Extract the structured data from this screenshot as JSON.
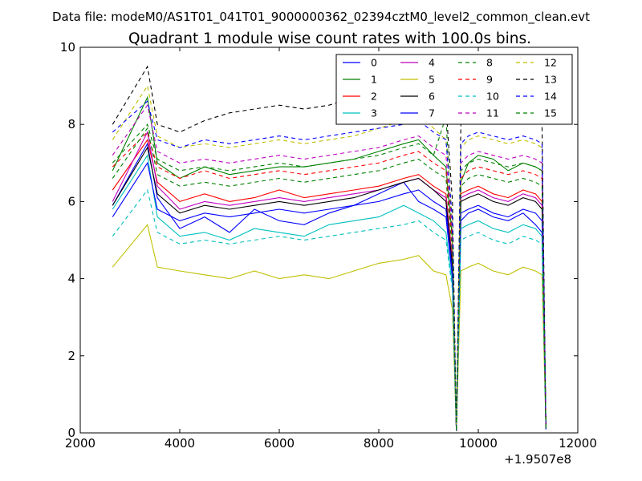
{
  "header": {
    "file_label": "Data file: modeM0/AS1T01_041T01_9000000362_02394cztM0_level2_common_clean.evt"
  },
  "chart_data": {
    "type": "line",
    "title": "Quadrant 1 module wise count rates with 100.0s bins.",
    "xlabel": "",
    "ylabel": "",
    "x_offset_label": "+1.9507e8",
    "xlim": [
      2000,
      12000
    ],
    "ylim": [
      0,
      10
    ],
    "x_ticks": [
      2000,
      4000,
      6000,
      8000,
      10000,
      12000
    ],
    "y_ticks": [
      0,
      2,
      4,
      6,
      8,
      10
    ],
    "x_tick_labels": [
      "2000",
      "4000",
      "6000",
      "8000",
      "10000",
      "12000"
    ],
    "y_tick_labels": [
      "0",
      "2",
      "4",
      "6",
      "8",
      "10"
    ],
    "grid": false,
    "legend_position": "top-right",
    "x": [
      2650,
      3350,
      3550,
      4000,
      4500,
      5000,
      5500,
      6000,
      6500,
      7000,
      7500,
      8000,
      8500,
      8800,
      9100,
      9350,
      9480,
      9560,
      9650,
      9800,
      10000,
      10300,
      10600,
      10900,
      11150,
      11280,
      11360
    ],
    "series": [
      {
        "name": "0",
        "color": "#0000ff",
        "dashed": false,
        "values": [
          5.9,
          7.5,
          6.1,
          5.3,
          5.6,
          5.2,
          5.8,
          5.5,
          5.4,
          5.7,
          5.9,
          6.2,
          6.5,
          6.0,
          5.8,
          5.6,
          4.0,
          0.05,
          5.5,
          5.7,
          5.8,
          5.6,
          5.5,
          5.7,
          5.4,
          5.2,
          0.1
        ]
      },
      {
        "name": "1",
        "color": "#008000",
        "dashed": false,
        "values": [
          6.8,
          8.7,
          7.0,
          6.6,
          6.9,
          6.7,
          6.8,
          6.9,
          6.9,
          7.0,
          7.1,
          7.3,
          7.5,
          7.6,
          7.2,
          6.9,
          5.0,
          0.05,
          6.5,
          7.0,
          7.2,
          7.1,
          6.8,
          7.0,
          6.9,
          6.8,
          0.1
        ]
      },
      {
        "name": "2",
        "color": "#ff0000",
        "dashed": false,
        "values": [
          6.3,
          7.6,
          6.5,
          6.0,
          6.2,
          6.0,
          6.1,
          6.3,
          6.1,
          6.2,
          6.3,
          6.4,
          6.6,
          6.7,
          6.4,
          6.2,
          4.5,
          0.05,
          6.2,
          6.3,
          6.4,
          6.2,
          6.1,
          6.3,
          6.2,
          6.0,
          0.1
        ]
      },
      {
        "name": "3",
        "color": "#00bfbf",
        "dashed": false,
        "values": [
          5.8,
          7.2,
          5.6,
          5.1,
          5.2,
          5.0,
          5.3,
          5.2,
          5.1,
          5.4,
          5.5,
          5.6,
          5.9,
          5.7,
          5.5,
          5.2,
          3.8,
          0.05,
          5.3,
          5.4,
          5.5,
          5.3,
          5.2,
          5.4,
          5.3,
          5.1,
          0.1
        ]
      },
      {
        "name": "4",
        "color": "#bf00bf",
        "dashed": false,
        "values": [
          6.0,
          7.8,
          6.4,
          5.8,
          6.0,
          5.9,
          6.0,
          6.1,
          6.0,
          6.1,
          6.2,
          6.3,
          6.5,
          6.6,
          6.3,
          6.1,
          4.4,
          0.05,
          6.1,
          6.2,
          6.3,
          6.1,
          6.0,
          6.2,
          6.1,
          5.9,
          0.1
        ]
      },
      {
        "name": "5",
        "color": "#bfbf00",
        "dashed": false,
        "values": [
          4.3,
          5.4,
          4.3,
          4.2,
          4.1,
          4.0,
          4.2,
          4.0,
          4.1,
          4.0,
          4.2,
          4.4,
          4.5,
          4.6,
          4.2,
          4.1,
          3.2,
          0.05,
          4.2,
          4.3,
          4.4,
          4.2,
          4.1,
          4.3,
          4.2,
          4.1,
          0.1
        ]
      },
      {
        "name": "6",
        "color": "#000000",
        "dashed": false,
        "values": [
          5.9,
          7.4,
          6.2,
          5.7,
          5.9,
          5.8,
          5.9,
          6.0,
          5.9,
          6.0,
          6.1,
          6.3,
          6.5,
          6.6,
          6.3,
          6.0,
          4.3,
          0.05,
          6.0,
          6.1,
          6.2,
          6.0,
          5.9,
          6.1,
          6.0,
          5.8,
          0.1
        ]
      },
      {
        "name": "7",
        "color": "#0000ff",
        "dashed": false,
        "values": [
          5.6,
          7.0,
          5.8,
          5.5,
          5.7,
          5.6,
          5.7,
          5.8,
          5.7,
          5.8,
          5.9,
          6.0,
          6.2,
          6.3,
          6.0,
          5.8,
          4.1,
          0.05,
          5.7,
          5.8,
          5.9,
          5.7,
          5.6,
          5.8,
          5.7,
          5.5,
          0.1
        ]
      },
      {
        "name": "8",
        "color": "#008000",
        "dashed": true,
        "values": [
          7.0,
          8.0,
          7.1,
          6.8,
          6.9,
          6.8,
          6.9,
          7.0,
          6.9,
          7.0,
          7.1,
          7.2,
          7.4,
          7.5,
          7.2,
          8.2,
          5.0,
          0.05,
          6.8,
          7.0,
          7.1,
          7.0,
          6.9,
          7.0,
          6.9,
          6.8,
          0.1
        ]
      },
      {
        "name": "9",
        "color": "#ff0000",
        "dashed": true,
        "values": [
          6.9,
          7.8,
          6.9,
          6.6,
          6.8,
          6.6,
          6.7,
          6.8,
          6.7,
          6.8,
          6.9,
          7.0,
          7.2,
          7.3,
          7.0,
          6.8,
          4.9,
          0.05,
          6.6,
          6.8,
          6.9,
          6.8,
          6.7,
          6.8,
          6.7,
          6.6,
          0.1
        ]
      },
      {
        "name": "10",
        "color": "#00bfbf",
        "dashed": true,
        "values": [
          5.1,
          6.3,
          5.2,
          4.9,
          5.0,
          4.9,
          5.0,
          5.1,
          5.0,
          5.1,
          5.2,
          5.3,
          5.4,
          5.5,
          5.2,
          5.0,
          3.7,
          0.05,
          5.0,
          5.1,
          5.2,
          5.0,
          4.9,
          5.1,
          5.0,
          4.9,
          0.1
        ]
      },
      {
        "name": "11",
        "color": "#bf00bf",
        "dashed": true,
        "values": [
          7.2,
          8.5,
          7.3,
          7.0,
          7.1,
          7.0,
          7.1,
          7.2,
          7.1,
          7.2,
          7.3,
          7.4,
          7.6,
          7.7,
          7.4,
          7.2,
          5.2,
          0.05,
          7.0,
          7.2,
          7.3,
          7.2,
          7.1,
          7.2,
          7.1,
          7.0,
          0.1
        ]
      },
      {
        "name": "12",
        "color": "#bfbf00",
        "dashed": true,
        "values": [
          7.6,
          9.0,
          7.7,
          7.4,
          7.5,
          7.4,
          7.5,
          7.6,
          7.5,
          7.6,
          7.7,
          7.9,
          8.1,
          8.3,
          7.9,
          7.6,
          5.5,
          0.05,
          7.4,
          7.6,
          7.7,
          7.6,
          7.5,
          7.6,
          7.5,
          7.4,
          0.1
        ]
      },
      {
        "name": "13",
        "color": "#000000",
        "dashed": true,
        "values": [
          8.0,
          9.5,
          8.0,
          7.8,
          8.1,
          8.3,
          8.4,
          8.5,
          8.4,
          8.5,
          8.7,
          8.9,
          9.2,
          9.4,
          8.9,
          8.5,
          6.0,
          0.05,
          8.0,
          8.3,
          8.4,
          8.2,
          8.1,
          8.3,
          8.2,
          8.0,
          0.1
        ]
      },
      {
        "name": "14",
        "color": "#0000ff",
        "dashed": true,
        "values": [
          7.8,
          8.6,
          7.6,
          7.4,
          7.6,
          7.5,
          7.6,
          7.7,
          7.6,
          7.7,
          7.8,
          7.9,
          8.0,
          8.1,
          7.8,
          7.6,
          5.5,
          0.05,
          7.5,
          7.7,
          7.8,
          7.7,
          7.6,
          7.7,
          7.6,
          7.5,
          0.1
        ]
      },
      {
        "name": "15",
        "color": "#008000",
        "dashed": true,
        "values": [
          6.6,
          7.9,
          6.7,
          6.4,
          6.5,
          6.4,
          6.5,
          6.6,
          6.5,
          6.6,
          6.7,
          6.8,
          7.0,
          7.1,
          6.8,
          6.6,
          4.7,
          0.05,
          6.4,
          6.6,
          6.7,
          6.6,
          6.5,
          6.6,
          6.5,
          6.4,
          0.1
        ]
      }
    ]
  }
}
